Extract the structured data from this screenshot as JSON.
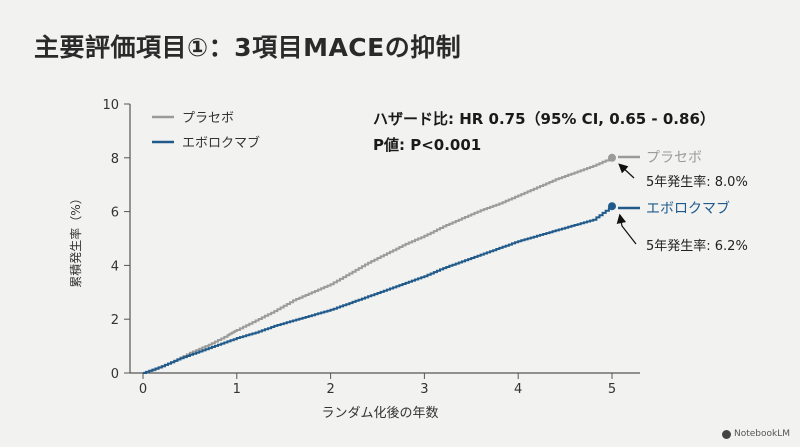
{
  "slide": {
    "title": "主要評価項目①：3項目MACEの抑制"
  },
  "chart_data": {
    "type": "line",
    "ylabel": "累積発生率（%）",
    "xlabel": "ランダム化後の年数",
    "xlim": [
      0,
      5
    ],
    "ylim": [
      0,
      10
    ],
    "x_ticks": [
      "0",
      "1",
      "2",
      "3",
      "4",
      "5"
    ],
    "y_ticks": [
      "0",
      "2",
      "4",
      "6",
      "8",
      "10"
    ],
    "legend_position": "top-left",
    "stats": {
      "hr": "ハザード比: HR 0.75（95% CI, 0.65 - 0.86）",
      "p": "P値: P<0.001"
    },
    "series": [
      {
        "name": "プラセボ",
        "color": "#9b9b9b",
        "end_label": "プラセボ",
        "annotation": "5年発生率: 8.0%",
        "points": [
          [
            0,
            0
          ],
          [
            0.1,
            0.1
          ],
          [
            0.3,
            0.4
          ],
          [
            0.5,
            0.75
          ],
          [
            0.7,
            1.05
          ],
          [
            0.9,
            1.4
          ],
          [
            1.0,
            1.6
          ],
          [
            1.2,
            1.95
          ],
          [
            1.4,
            2.3
          ],
          [
            1.6,
            2.7
          ],
          [
            1.8,
            3.0
          ],
          [
            2.0,
            3.3
          ],
          [
            2.2,
            3.7
          ],
          [
            2.4,
            4.1
          ],
          [
            2.6,
            4.45
          ],
          [
            2.8,
            4.8
          ],
          [
            3.0,
            5.1
          ],
          [
            3.2,
            5.45
          ],
          [
            3.4,
            5.75
          ],
          [
            3.6,
            6.05
          ],
          [
            3.8,
            6.3
          ],
          [
            4.0,
            6.6
          ],
          [
            4.2,
            6.9
          ],
          [
            4.4,
            7.2
          ],
          [
            4.6,
            7.45
          ],
          [
            4.8,
            7.7
          ],
          [
            5.0,
            8.0
          ]
        ]
      },
      {
        "name": "エボロクマブ",
        "color": "#1f5a8a",
        "end_label": "エボロクマブ",
        "annotation": "5年発生率: 6.2%",
        "points": [
          [
            0,
            0
          ],
          [
            0.2,
            0.25
          ],
          [
            0.4,
            0.55
          ],
          [
            0.6,
            0.8
          ],
          [
            0.8,
            1.05
          ],
          [
            1.0,
            1.3
          ],
          [
            1.2,
            1.5
          ],
          [
            1.4,
            1.75
          ],
          [
            1.6,
            1.95
          ],
          [
            1.8,
            2.15
          ],
          [
            2.0,
            2.35
          ],
          [
            2.2,
            2.6
          ],
          [
            2.4,
            2.85
          ],
          [
            2.6,
            3.1
          ],
          [
            2.8,
            3.35
          ],
          [
            3.0,
            3.6
          ],
          [
            3.2,
            3.9
          ],
          [
            3.4,
            4.15
          ],
          [
            3.6,
            4.4
          ],
          [
            3.8,
            4.65
          ],
          [
            4.0,
            4.9
          ],
          [
            4.2,
            5.1
          ],
          [
            4.4,
            5.3
          ],
          [
            4.6,
            5.5
          ],
          [
            4.8,
            5.7
          ],
          [
            5.0,
            6.2
          ]
        ]
      }
    ]
  },
  "watermark": {
    "text": "NotebookLM"
  }
}
